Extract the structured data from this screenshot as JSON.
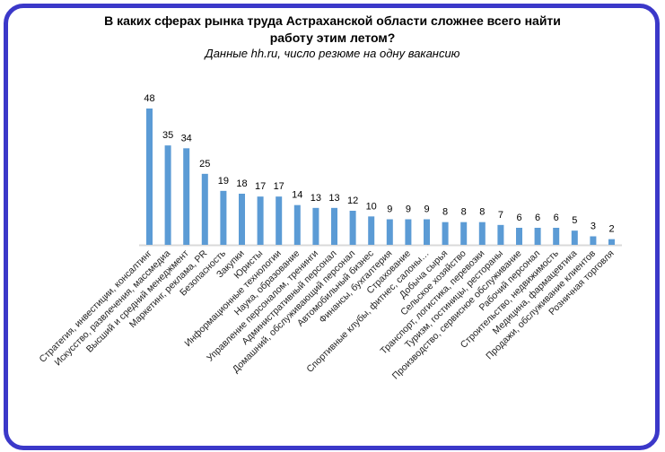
{
  "chart_data": {
    "type": "bar",
    "title": "В каких сферах рынка труда Астраханской области сложнее всего найти работу этим летом?",
    "title_line1": "В каких сферах рынка труда Астраханской области сложнее всего найти",
    "title_line2": "работу этим летом?",
    "subtitle": "Данные hh.ru, число резюме на одну вакансию",
    "xlabel": "",
    "ylabel": "",
    "ylim": [
      0,
      50
    ],
    "grid": false,
    "bar_color": "#5b9bd5",
    "categories": [
      "Стратегия, инвестиции, консалтинг",
      "Искусство, развлечения, массмедиа",
      "Высший и средний менеджмент",
      "Маркетинг, реклама, PR",
      "Безопасность",
      "Закупки",
      "Юристы",
      "Информационные технологии",
      "Наука, образование",
      "Управление персоналом, тренинги",
      "Административный персонал",
      "Домашний, обслуживающий персонал",
      "Автомобильный бизнес",
      "Финансы, бухгалтерия",
      "Страхование",
      "Спортивные клубы, фитнес, салоны…",
      "Добыча сырья",
      "Сельское хозяйство",
      "Транспорт, логистика, перевозки",
      "Туризм, гостиницы, рестораны",
      "Производство, сервисное обслуживание",
      "Рабочий персонал",
      "Строительство, недвижимость",
      "Медицина, фармацевтика",
      "Продажи, обслуживание клиентов",
      "Розничная торговля"
    ],
    "values": [
      48,
      35,
      34,
      25,
      19,
      18,
      17,
      17,
      14,
      13,
      13,
      12,
      10,
      9,
      9,
      9,
      8,
      8,
      8,
      7,
      6,
      6,
      6,
      5,
      3,
      2
    ]
  }
}
